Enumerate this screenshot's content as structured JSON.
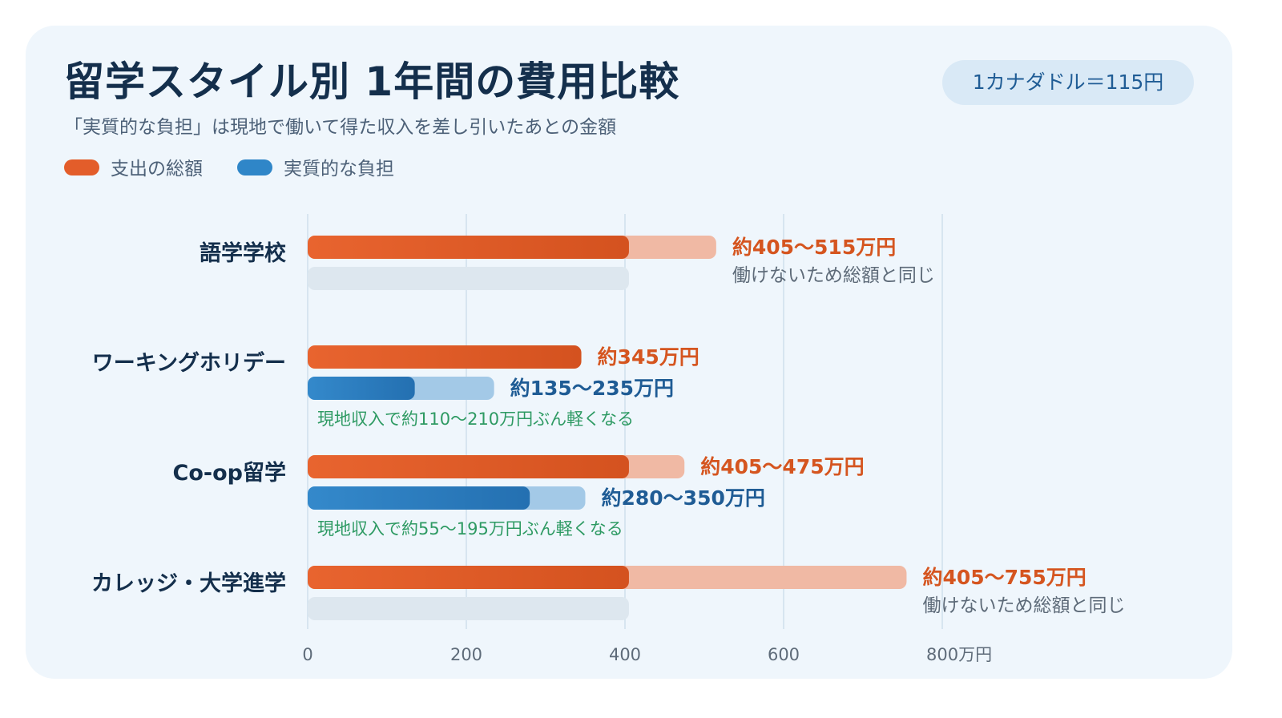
{
  "header": {
    "title": "留学スタイル別 1年間の費用比較",
    "subtitle": "「実質的な負担」は現地で働いて得た収入を差し引いたあとの金額",
    "exchange_rate": "1カナダドル＝115円"
  },
  "colors": {
    "total": "#e35d2a",
    "total_light": "#f0b9a4",
    "net": "#2f86c8",
    "net_light": "#a3c9e7",
    "empty": "#dde7ef",
    "grid": "#cfdfeb"
  },
  "chart_data": {
    "type": "bar",
    "orientation": "horizontal",
    "xlim": [
      0,
      800
    ],
    "x_ticks": [
      0,
      200,
      400,
      600,
      800
    ],
    "x_tick_labels": [
      "0",
      "200",
      "400",
      "600",
      "800万円"
    ],
    "grid": true,
    "legend": [
      {
        "name": "支出の総額",
        "color": "#e35d2a"
      },
      {
        "name": "実質的な負担",
        "color": "#2f86c8"
      }
    ],
    "categories": [
      {
        "label": "語学学校",
        "total": {
          "min": 405,
          "max": 515,
          "label": "約405〜515万円"
        },
        "net": null,
        "net_note": "働けないため総額と同じ",
        "reduction": ""
      },
      {
        "label": "ワーキングホリデー",
        "total": {
          "min": 345,
          "max": 345,
          "label": "約345万円"
        },
        "net": {
          "min": 135,
          "max": 235,
          "label": "約135〜235万円"
        },
        "net_note": "",
        "reduction": "現地収入で約110〜210万円ぶん軽くなる"
      },
      {
        "label": "Co-op留学",
        "total": {
          "min": 405,
          "max": 475,
          "label": "約405〜475万円"
        },
        "net": {
          "min": 280,
          "max": 350,
          "label": "約280〜350万円"
        },
        "net_note": "",
        "reduction": "現地収入で約55〜195万円ぶん軽くなる"
      },
      {
        "label": "カレッジ・大学進学",
        "total": {
          "min": 405,
          "max": 755,
          "label": "約405〜755万円"
        },
        "net": null,
        "net_note": "働けないため総額と同じ",
        "reduction": ""
      }
    ]
  }
}
